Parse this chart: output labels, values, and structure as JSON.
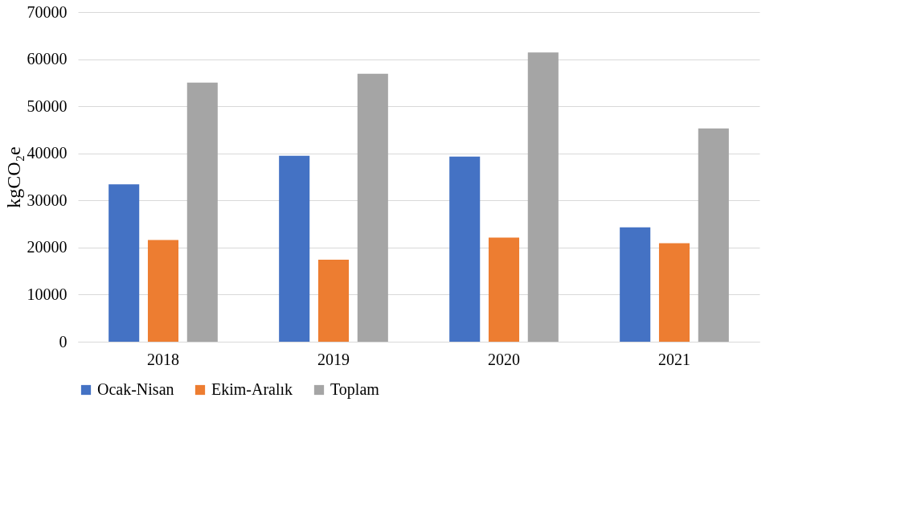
{
  "chart_data": {
    "type": "bar",
    "ylabel": "kgCO₂e",
    "categories": [
      "2018",
      "2019",
      "2020",
      "2021"
    ],
    "series": [
      {
        "name": "Ocak-Nisan",
        "color": "#4472c4",
        "values": [
          33400,
          39500,
          39300,
          24300
        ]
      },
      {
        "name": "Ekim-Aralık",
        "color": "#ed7d31",
        "values": [
          21600,
          17400,
          22100,
          20900
        ]
      },
      {
        "name": "Toplam",
        "color": "#a5a5a5",
        "values": [
          55000,
          56900,
          61400,
          45300
        ]
      }
    ],
    "ylim": [
      0,
      70000
    ],
    "yticks": [
      0,
      10000,
      20000,
      30000,
      40000,
      50000,
      60000,
      70000
    ],
    "grid": "y",
    "legend": "bottom"
  }
}
